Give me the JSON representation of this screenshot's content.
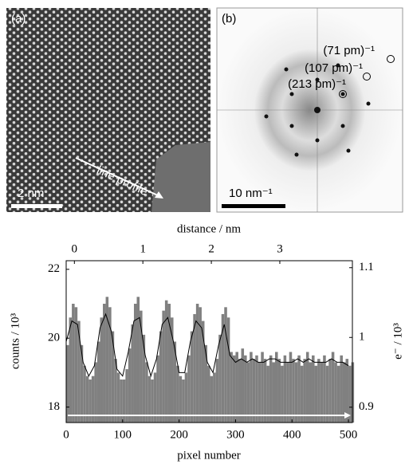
{
  "panels": {
    "a": {
      "label": "(a)",
      "annotation": "line profile",
      "scale": "2 nm"
    },
    "b": {
      "label": "(b)",
      "scale": "10 nm⁻¹",
      "rings": [
        "(71 pm)⁻¹",
        "(107 pm)⁻¹",
        "(213 pm)⁻¹"
      ]
    }
  },
  "chart_data": {
    "type": "bar",
    "xlabel": "pixel number",
    "ylabel": "counts / 10³",
    "x2label": "distance / nm",
    "y2label": "e⁻ / 10³",
    "xlim": [
      0,
      507
    ],
    "xticks": [
      0,
      100,
      200,
      300,
      400,
      500
    ],
    "ylim": [
      17.55,
      22.25
    ],
    "yticks": [
      18,
      20,
      22
    ],
    "x2lim": [
      -0.12,
      4.06
    ],
    "x2ticks": [
      0,
      1,
      2,
      3
    ],
    "y2lim": [
      0.878,
      1.11
    ],
    "y2ticks": [
      0.9,
      1,
      1.1
    ],
    "series": [
      {
        "type": "bar",
        "color": "#808080",
        "width": 5,
        "x": [
          0,
          5,
          10,
          15,
          20,
          25,
          30,
          35,
          40,
          45,
          50,
          55,
          60,
          65,
          70,
          75,
          80,
          85,
          90,
          95,
          100,
          105,
          110,
          115,
          120,
          125,
          130,
          135,
          140,
          145,
          150,
          155,
          160,
          165,
          170,
          175,
          180,
          185,
          190,
          195,
          200,
          205,
          210,
          215,
          220,
          225,
          230,
          235,
          240,
          245,
          250,
          255,
          260,
          265,
          270,
          275,
          280,
          285,
          290,
          295,
          300,
          305,
          310,
          315,
          320,
          325,
          330,
          335,
          340,
          345,
          350,
          355,
          360,
          365,
          370,
          375,
          380,
          385,
          390,
          395,
          400,
          405,
          410,
          415,
          420,
          425,
          430,
          435,
          440,
          445,
          450,
          455,
          460,
          465,
          470,
          475,
          480,
          485,
          490,
          495,
          500,
          505
        ],
        "values": [
          19.8,
          20.6,
          21.0,
          20.9,
          20.5,
          19.8,
          19.2,
          18.9,
          18.8,
          18.9,
          19.3,
          19.9,
          20.6,
          21.0,
          21.2,
          20.9,
          20.2,
          19.4,
          19.0,
          18.8,
          18.8,
          19.1,
          19.7,
          20.4,
          21.0,
          21.2,
          20.8,
          20.1,
          19.3,
          18.9,
          18.8,
          19.0,
          19.5,
          20.2,
          20.8,
          21.1,
          21.0,
          20.6,
          19.9,
          19.2,
          18.9,
          18.8,
          19.0,
          19.5,
          20.2,
          20.7,
          21.0,
          20.9,
          20.5,
          19.8,
          19.2,
          18.9,
          19.0,
          19.4,
          20.1,
          20.7,
          20.9,
          20.6,
          19.6,
          19.5,
          19.6,
          19.4,
          19.7,
          19.5,
          19.3,
          19.6,
          19.4,
          19.5,
          19.3,
          19.6,
          19.4,
          19.2,
          19.5,
          19.3,
          19.6,
          19.4,
          19.2,
          19.5,
          19.3,
          19.6,
          19.4,
          19.3,
          19.5,
          19.2,
          19.4,
          19.6,
          19.3,
          19.5,
          19.2,
          19.4,
          19.3,
          19.5,
          19.2,
          19.4,
          19.6,
          19.3,
          19.2,
          19.5,
          19.3,
          19.4,
          19.2,
          19.3
        ]
      },
      {
        "type": "line",
        "color": "#000000",
        "x": [
          0,
          10,
          20,
          30,
          40,
          50,
          60,
          70,
          80,
          90,
          100,
          110,
          120,
          130,
          140,
          150,
          160,
          170,
          180,
          190,
          200,
          210,
          220,
          230,
          240,
          250,
          260,
          270,
          280,
          290,
          300,
          310,
          320,
          330,
          340,
          350,
          360,
          370,
          380,
          390,
          400,
          410,
          420,
          430,
          440,
          450,
          460,
          470,
          480,
          490,
          500
        ],
        "values": [
          19.9,
          20.5,
          20.4,
          19.3,
          18.9,
          19.2,
          20.3,
          20.7,
          20.2,
          19.1,
          18.9,
          19.6,
          20.5,
          20.6,
          19.5,
          18.9,
          19.4,
          20.4,
          20.6,
          19.9,
          19.0,
          19.0,
          19.9,
          20.5,
          20.3,
          19.3,
          19.0,
          19.8,
          20.4,
          19.5,
          19.3,
          19.4,
          19.3,
          19.4,
          19.3,
          19.3,
          19.4,
          19.4,
          19.3,
          19.3,
          19.3,
          19.4,
          19.3,
          19.4,
          19.3,
          19.3,
          19.3,
          19.4,
          19.3,
          19.3,
          19.2
        ]
      }
    ]
  }
}
